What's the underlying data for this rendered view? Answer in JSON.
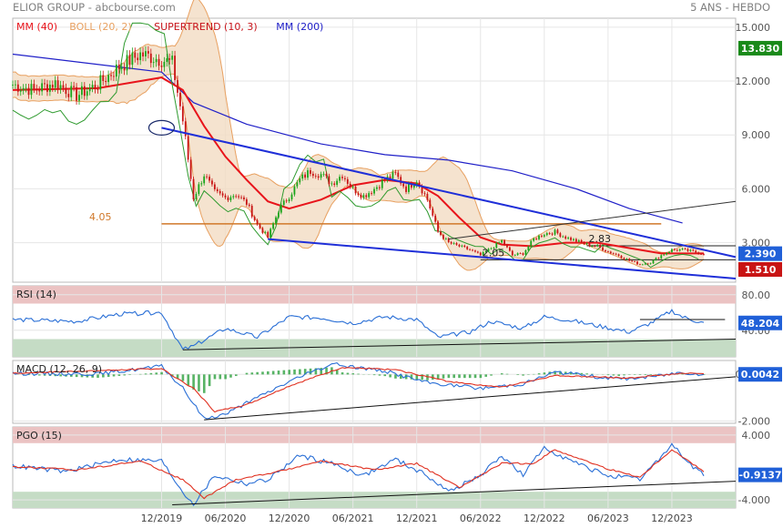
{
  "header": {
    "title": "ELIOR GROUP - abcbourse.com",
    "period": "5 ANS - HEBDO"
  },
  "colors": {
    "mm40": "#e8141b",
    "boll": "#e8a060",
    "supertrend": "#c8141b",
    "mm200": "#2020c8",
    "candle_up": "#1aa41a",
    "candle_down": "#c81414",
    "trend": "#1f2fd8",
    "support": "#d0782a",
    "rsi": "#2a6fd6",
    "macd": "#2a6fd6",
    "signal": "#e03020",
    "histogram": "#3aa64a",
    "overbought": "#ebc3c3",
    "oversold": "#c5dcc5",
    "badge_green": "#1a8a1a",
    "badge_blue": "#2060d8",
    "badge_red": "#c81414"
  },
  "chart_data": [
    {
      "type": "candlestick",
      "title": "",
      "legend": [
        {
          "label": "MM (40)",
          "color": "#e8141b"
        },
        {
          "label": "BOLL (20, 2)",
          "color": "#e8a060"
        },
        {
          "label": "SUPERTREND (10, 3)",
          "color": "#c8141b"
        },
        {
          "label": "MM (200)",
          "color": "#2020c8"
        }
      ],
      "y_ticks": [
        "15.000",
        "12.000",
        "9.000",
        "6.000",
        "3.000"
      ],
      "ylim": [
        0.8,
        15.5
      ],
      "annotations": [
        {
          "label": "4.05",
          "value": 4.05
        },
        {
          "label": "2.05",
          "date": "2022-06",
          "value": 2.05
        },
        {
          "label": "2.83",
          "date": "2023-04",
          "value": 2.83
        }
      ],
      "badges": [
        {
          "label": "13.830",
          "value": 13.83,
          "color": "#1a8a1a"
        },
        {
          "label": "2.390",
          "value": 2.39,
          "color": "#2060d8"
        },
        {
          "label": "1.510",
          "value": 1.51,
          "color": "#c81414"
        }
      ],
      "series": {
        "close": [
          [
            "2018-10",
            11.8
          ],
          [
            "2018-12",
            11.5
          ],
          [
            "2019-02",
            11.9
          ],
          [
            "2019-04",
            11.2
          ],
          [
            "2019-06",
            11.8
          ],
          [
            "2019-08",
            12.8
          ],
          [
            "2019-10",
            13.5
          ],
          [
            "2019-12",
            13.2
          ],
          [
            "2020-01",
            13.0
          ],
          [
            "2020-02",
            9.8
          ],
          [
            "2020-03",
            5.5
          ],
          [
            "2020-04",
            6.8
          ],
          [
            "2020-05",
            5.8
          ],
          [
            "2020-06",
            5.5
          ],
          [
            "2020-07",
            5.7
          ],
          [
            "2020-08",
            5.2
          ],
          [
            "2020-09",
            4.0
          ],
          [
            "2020-10",
            3.3
          ],
          [
            "2020-11",
            4.8
          ],
          [
            "2020-12",
            5.6
          ],
          [
            "2021-01",
            6.5
          ],
          [
            "2021-02",
            7.0
          ],
          [
            "2021-03",
            6.8
          ],
          [
            "2021-04",
            6.3
          ],
          [
            "2021-05",
            6.8
          ],
          [
            "2021-06",
            6.0
          ],
          [
            "2021-07",
            5.6
          ],
          [
            "2021-08",
            6.0
          ],
          [
            "2021-09",
            6.5
          ],
          [
            "2021-10",
            6.8
          ],
          [
            "2021-11",
            6.0
          ],
          [
            "2021-12",
            6.5
          ],
          [
            "2022-01",
            5.4
          ],
          [
            "2022-02",
            3.6
          ],
          [
            "2022-03",
            3.0
          ],
          [
            "2022-04",
            2.8
          ],
          [
            "2022-05",
            2.6
          ],
          [
            "2022-06",
            2.3
          ],
          [
            "2022-07",
            2.7
          ],
          [
            "2022-08",
            3.1
          ],
          [
            "2022-09",
            2.3
          ],
          [
            "2022-10",
            2.4
          ],
          [
            "2022-11",
            3.2
          ],
          [
            "2022-12",
            3.5
          ],
          [
            "2023-01",
            3.6
          ],
          [
            "2023-02",
            3.3
          ],
          [
            "2023-03",
            3.1
          ],
          [
            "2023-04",
            2.9
          ],
          [
            "2023-05",
            2.8
          ],
          [
            "2023-06",
            2.5
          ],
          [
            "2023-07",
            2.3
          ],
          [
            "2023-08",
            2.0
          ],
          [
            "2023-09",
            1.8
          ],
          [
            "2023-10",
            1.9
          ],
          [
            "2023-11",
            2.3
          ],
          [
            "2023-12",
            2.6
          ],
          [
            "2024-01",
            2.6
          ],
          [
            "2024-02",
            2.5
          ],
          [
            "2024-03",
            2.39
          ]
        ],
        "mm40": [
          [
            "2018-10",
            11.5
          ],
          [
            "2019-06",
            11.6
          ],
          [
            "2019-12",
            12.2
          ],
          [
            "2020-02",
            11.5
          ],
          [
            "2020-04",
            9.5
          ],
          [
            "2020-06",
            7.8
          ],
          [
            "2020-08",
            6.5
          ],
          [
            "2020-10",
            5.3
          ],
          [
            "2020-12",
            4.9
          ],
          [
            "2021-03",
            5.4
          ],
          [
            "2021-06",
            6.2
          ],
          [
            "2021-09",
            6.5
          ],
          [
            "2021-12",
            6.3
          ],
          [
            "2022-02",
            5.6
          ],
          [
            "2022-04",
            4.4
          ],
          [
            "2022-06",
            3.3
          ],
          [
            "2022-08",
            2.9
          ],
          [
            "2022-11",
            2.8
          ],
          [
            "2023-02",
            3.0
          ],
          [
            "2023-05",
            3.0
          ],
          [
            "2023-08",
            2.7
          ],
          [
            "2023-11",
            2.4
          ],
          [
            "2024-03",
            2.4
          ]
        ],
        "mm200": [
          [
            "2018-10",
            13.5
          ],
          [
            "2019-12",
            12.5
          ],
          [
            "2020-03",
            10.8
          ],
          [
            "2020-08",
            9.6
          ],
          [
            "2021-03",
            8.5
          ],
          [
            "2021-09",
            7.9
          ],
          [
            "2022-03",
            7.6
          ],
          [
            "2022-09",
            7.0
          ],
          [
            "2023-03",
            6.0
          ],
          [
            "2023-08",
            4.9
          ],
          [
            "2024-01",
            4.1
          ]
        ]
      },
      "trendlines": [
        {
          "from": [
            "2019-12",
            9.4
          ],
          "to": [
            "2024-06",
            2.2
          ]
        },
        {
          "from": [
            "2020-10",
            3.2
          ],
          "to": [
            "2024-06",
            1.0
          ]
        },
        {
          "from": [
            "2022-03",
            3.2
          ],
          "to": [
            "2024-06",
            5.3
          ]
        }
      ],
      "horizontal_lines": [
        {
          "value": 4.05,
          "from": "2019-12",
          "to": "2023-11"
        },
        {
          "value": 2.83,
          "from": "2023-04",
          "to": "2024-06"
        },
        {
          "value": 2.05,
          "from": "2022-06",
          "to": "2024-06"
        }
      ]
    },
    {
      "type": "line",
      "title": "RSI (14)",
      "y_ticks": [
        "80.00",
        "40.00"
      ],
      "ylim": [
        10,
        90
      ],
      "zones": [
        {
          "from": 70,
          "to": 90,
          "color": "#ebc3c3"
        },
        {
          "from": 10,
          "to": 30,
          "color": "#c5dcc5"
        }
      ],
      "badge": {
        "label": "48.204",
        "value": 48.204,
        "color": "#2060d8"
      },
      "series": [
        {
          "values": [
            [
              "2018-10",
              52
            ],
            [
              "2019-04",
              50
            ],
            [
              "2019-08",
              58
            ],
            [
              "2019-12",
              60
            ],
            [
              "2020-02",
              18
            ],
            [
              "2020-03",
              22
            ],
            [
              "2020-06",
              42
            ],
            [
              "2020-09",
              32
            ],
            [
              "2020-12",
              55
            ],
            [
              "2021-03",
              54
            ],
            [
              "2021-06",
              48
            ],
            [
              "2021-09",
              55
            ],
            [
              "2021-12",
              52
            ],
            [
              "2022-02",
              32
            ],
            [
              "2022-05",
              38
            ],
            [
              "2022-07",
              50
            ],
            [
              "2022-10",
              42
            ],
            [
              "2022-12",
              55
            ],
            [
              "2023-02",
              52
            ],
            [
              "2023-05",
              45
            ],
            [
              "2023-08",
              38
            ],
            [
              "2023-10",
              48
            ],
            [
              "2023-12",
              62
            ],
            [
              "2024-01",
              55
            ],
            [
              "2024-03",
              48
            ]
          ]
        }
      ],
      "trendlines": [
        {
          "from": [
            "2020-02",
            18
          ],
          "to": [
            "2024-06",
            30
          ]
        }
      ],
      "horizontal_lines": [
        {
          "value": 52,
          "from": "2023-09",
          "to": "2024-05"
        }
      ]
    },
    {
      "type": "line",
      "title": "MACD (12, 26, 9)",
      "y_ticks": [
        "0.0042",
        "-2.000"
      ],
      "ylim": [
        -2.1,
        0.6
      ],
      "badge": {
        "label": "0.0042",
        "value": 0.0042,
        "color": "#2060d8"
      },
      "series": [
        {
          "values": [
            [
              "2018-10",
              0.05
            ],
            [
              "2019-06",
              0.02
            ],
            [
              "2019-12",
              0.35
            ],
            [
              "2020-02",
              -0.6
            ],
            [
              "2020-04",
              -1.9
            ],
            [
              "2020-06",
              -1.7
            ],
            [
              "2020-09",
              -1.0
            ],
            [
              "2020-12",
              -0.3
            ],
            [
              "2021-04",
              0.45
            ],
            [
              "2021-09",
              0.15
            ],
            [
              "2022-01",
              -0.35
            ],
            [
              "2022-06",
              -0.6
            ],
            [
              "2022-10",
              -0.4
            ],
            [
              "2023-01",
              0.1
            ],
            [
              "2023-07",
              -0.2
            ],
            [
              "2023-10",
              -0.1
            ],
            [
              "2024-01",
              0.1
            ],
            [
              "2024-03",
              0.0042
            ]
          ]
        },
        {
          "values": [
            [
              "2018-10",
              0.05
            ],
            [
              "2019-12",
              0.25
            ],
            [
              "2020-03",
              -0.6
            ],
            [
              "2020-05",
              -1.6
            ],
            [
              "2020-08",
              -1.3
            ],
            [
              "2020-12",
              -0.5
            ],
            [
              "2021-05",
              0.3
            ],
            [
              "2021-10",
              0.2
            ],
            [
              "2022-03",
              -0.3
            ],
            [
              "2022-08",
              -0.55
            ],
            [
              "2023-01",
              -0.05
            ],
            [
              "2023-08",
              -0.15
            ],
            [
              "2024-01",
              0.05
            ],
            [
              "2024-03",
              0.03
            ]
          ]
        }
      ],
      "trendlines": [
        {
          "from": [
            "2020-04",
            -1.95
          ],
          "to": [
            "2024-06",
            -0.1
          ]
        }
      ]
    },
    {
      "type": "line",
      "title": "PGO (15)",
      "y_ticks": [
        "4.000",
        "-4.000"
      ],
      "ylim": [
        -5,
        5
      ],
      "zones": [
        {
          "from": 3,
          "to": 5,
          "color": "#ebc3c3"
        },
        {
          "from": -5,
          "to": -3,
          "color": "#c5dcc5"
        }
      ],
      "badge": {
        "label": "-0.9137",
        "value": -0.9137,
        "color": "#2060d8"
      },
      "series": [
        {
          "values": [
            [
              "2018-10",
              0.2
            ],
            [
              "2019-03",
              -0.5
            ],
            [
              "2019-08",
              1.0
            ],
            [
              "2019-12",
              0.8
            ],
            [
              "2020-02",
              -3.0
            ],
            [
              "2020-03",
              -4.5
            ],
            [
              "2020-05",
              -1.0
            ],
            [
              "2020-08",
              -2.0
            ],
            [
              "2020-10",
              -1.5
            ],
            [
              "2021-01",
              1.5
            ],
            [
              "2021-04",
              0.5
            ],
            [
              "2021-07",
              -1.0
            ],
            [
              "2021-10",
              1.0
            ],
            [
              "2022-01",
              -1.0
            ],
            [
              "2022-03",
              -3.0
            ],
            [
              "2022-06",
              -1.0
            ],
            [
              "2022-08",
              1.5
            ],
            [
              "2022-10",
              -1.0
            ],
            [
              "2022-12",
              2.5
            ],
            [
              "2023-03",
              0.5
            ],
            [
              "2023-06",
              -1.0
            ],
            [
              "2023-09",
              -1.5
            ],
            [
              "2023-12",
              2.8
            ],
            [
              "2024-02",
              0.0
            ],
            [
              "2024-03",
              -0.9137
            ]
          ]
        },
        {
          "values": [
            [
              "2018-10",
              0.1
            ],
            [
              "2019-04",
              -0.3
            ],
            [
              "2019-10",
              0.8
            ],
            [
              "2020-02",
              -1.5
            ],
            [
              "2020-04",
              -3.8
            ],
            [
              "2020-07",
              -1.5
            ],
            [
              "2020-11",
              -0.5
            ],
            [
              "2021-03",
              0.8
            ],
            [
              "2021-08",
              -0.3
            ],
            [
              "2021-12",
              0.5
            ],
            [
              "2022-04",
              -2.5
            ],
            [
              "2022-08",
              0.5
            ],
            [
              "2022-11",
              0.5
            ],
            [
              "2023-01",
              2.2
            ],
            [
              "2023-06",
              -0.2
            ],
            [
              "2023-09",
              -1.2
            ],
            [
              "2023-12",
              2.2
            ],
            [
              "2024-03",
              -0.5
            ]
          ]
        }
      ],
      "trendlines": [
        {
          "from": [
            "2020-01",
            -4.6
          ],
          "to": [
            "2024-06",
            -1.7
          ]
        }
      ]
    }
  ],
  "x_axis": {
    "range": [
      "2018-10",
      "2024-06"
    ],
    "labels": [
      {
        "label": "12/2019",
        "date": "2019-12"
      },
      {
        "label": "06/2020",
        "date": "2020-06"
      },
      {
        "label": "12/2020",
        "date": "2020-12"
      },
      {
        "label": "06/2021",
        "date": "2021-06"
      },
      {
        "label": "12/2021",
        "date": "2021-12"
      },
      {
        "label": "06/2022",
        "date": "2022-06"
      },
      {
        "label": "12/2022",
        "date": "2022-12"
      },
      {
        "label": "06/2023",
        "date": "2023-06"
      },
      {
        "label": "12/2023",
        "date": "2023-12"
      }
    ]
  }
}
